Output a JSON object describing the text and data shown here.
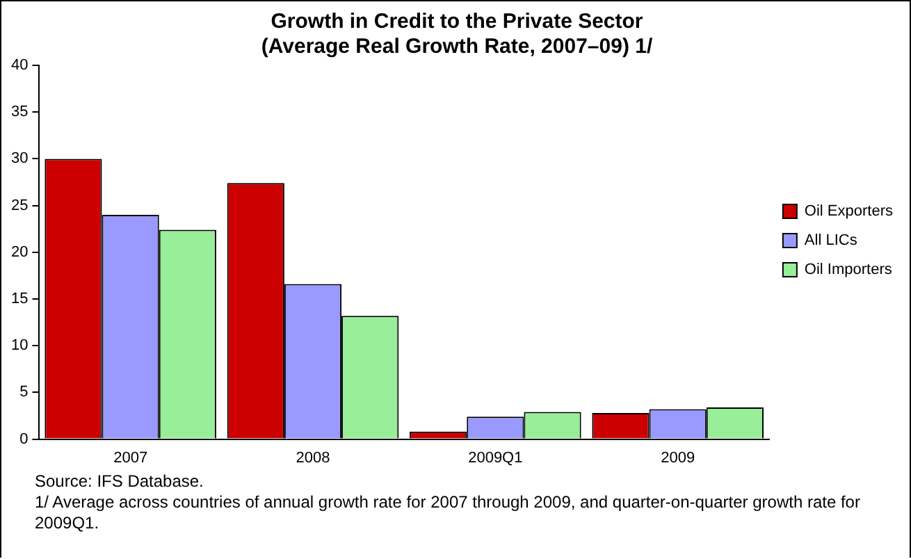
{
  "chart_data": {
    "type": "bar",
    "title": "Growth in Credit to the Private Sector\n(Average Real Growth Rate, 2007–09) 1/",
    "categories": [
      "2007",
      "2008",
      "2009Q1",
      "2009"
    ],
    "series": [
      {
        "name": "Oil Exporters",
        "color": "#cc0000",
        "values": [
          30.0,
          27.4,
          0.8,
          2.8
        ]
      },
      {
        "name": "All LICs",
        "color": "#9999ff",
        "values": [
          24.0,
          16.6,
          2.4,
          3.2
        ]
      },
      {
        "name": "Oil Importers",
        "color": "#99ee99",
        "values": [
          22.4,
          13.2,
          2.9,
          3.4
        ]
      }
    ],
    "ylim": [
      0,
      40
    ],
    "yticks": [
      0,
      5,
      10,
      15,
      20,
      25,
      30,
      35,
      40
    ],
    "grid": false,
    "legend": "right",
    "annotations": [
      "Source: IFS Database.",
      "1/ Average across countries of annual growth rate for 2007 through 2009, and quarter-on-quarter growth rate for 2009Q1."
    ]
  }
}
